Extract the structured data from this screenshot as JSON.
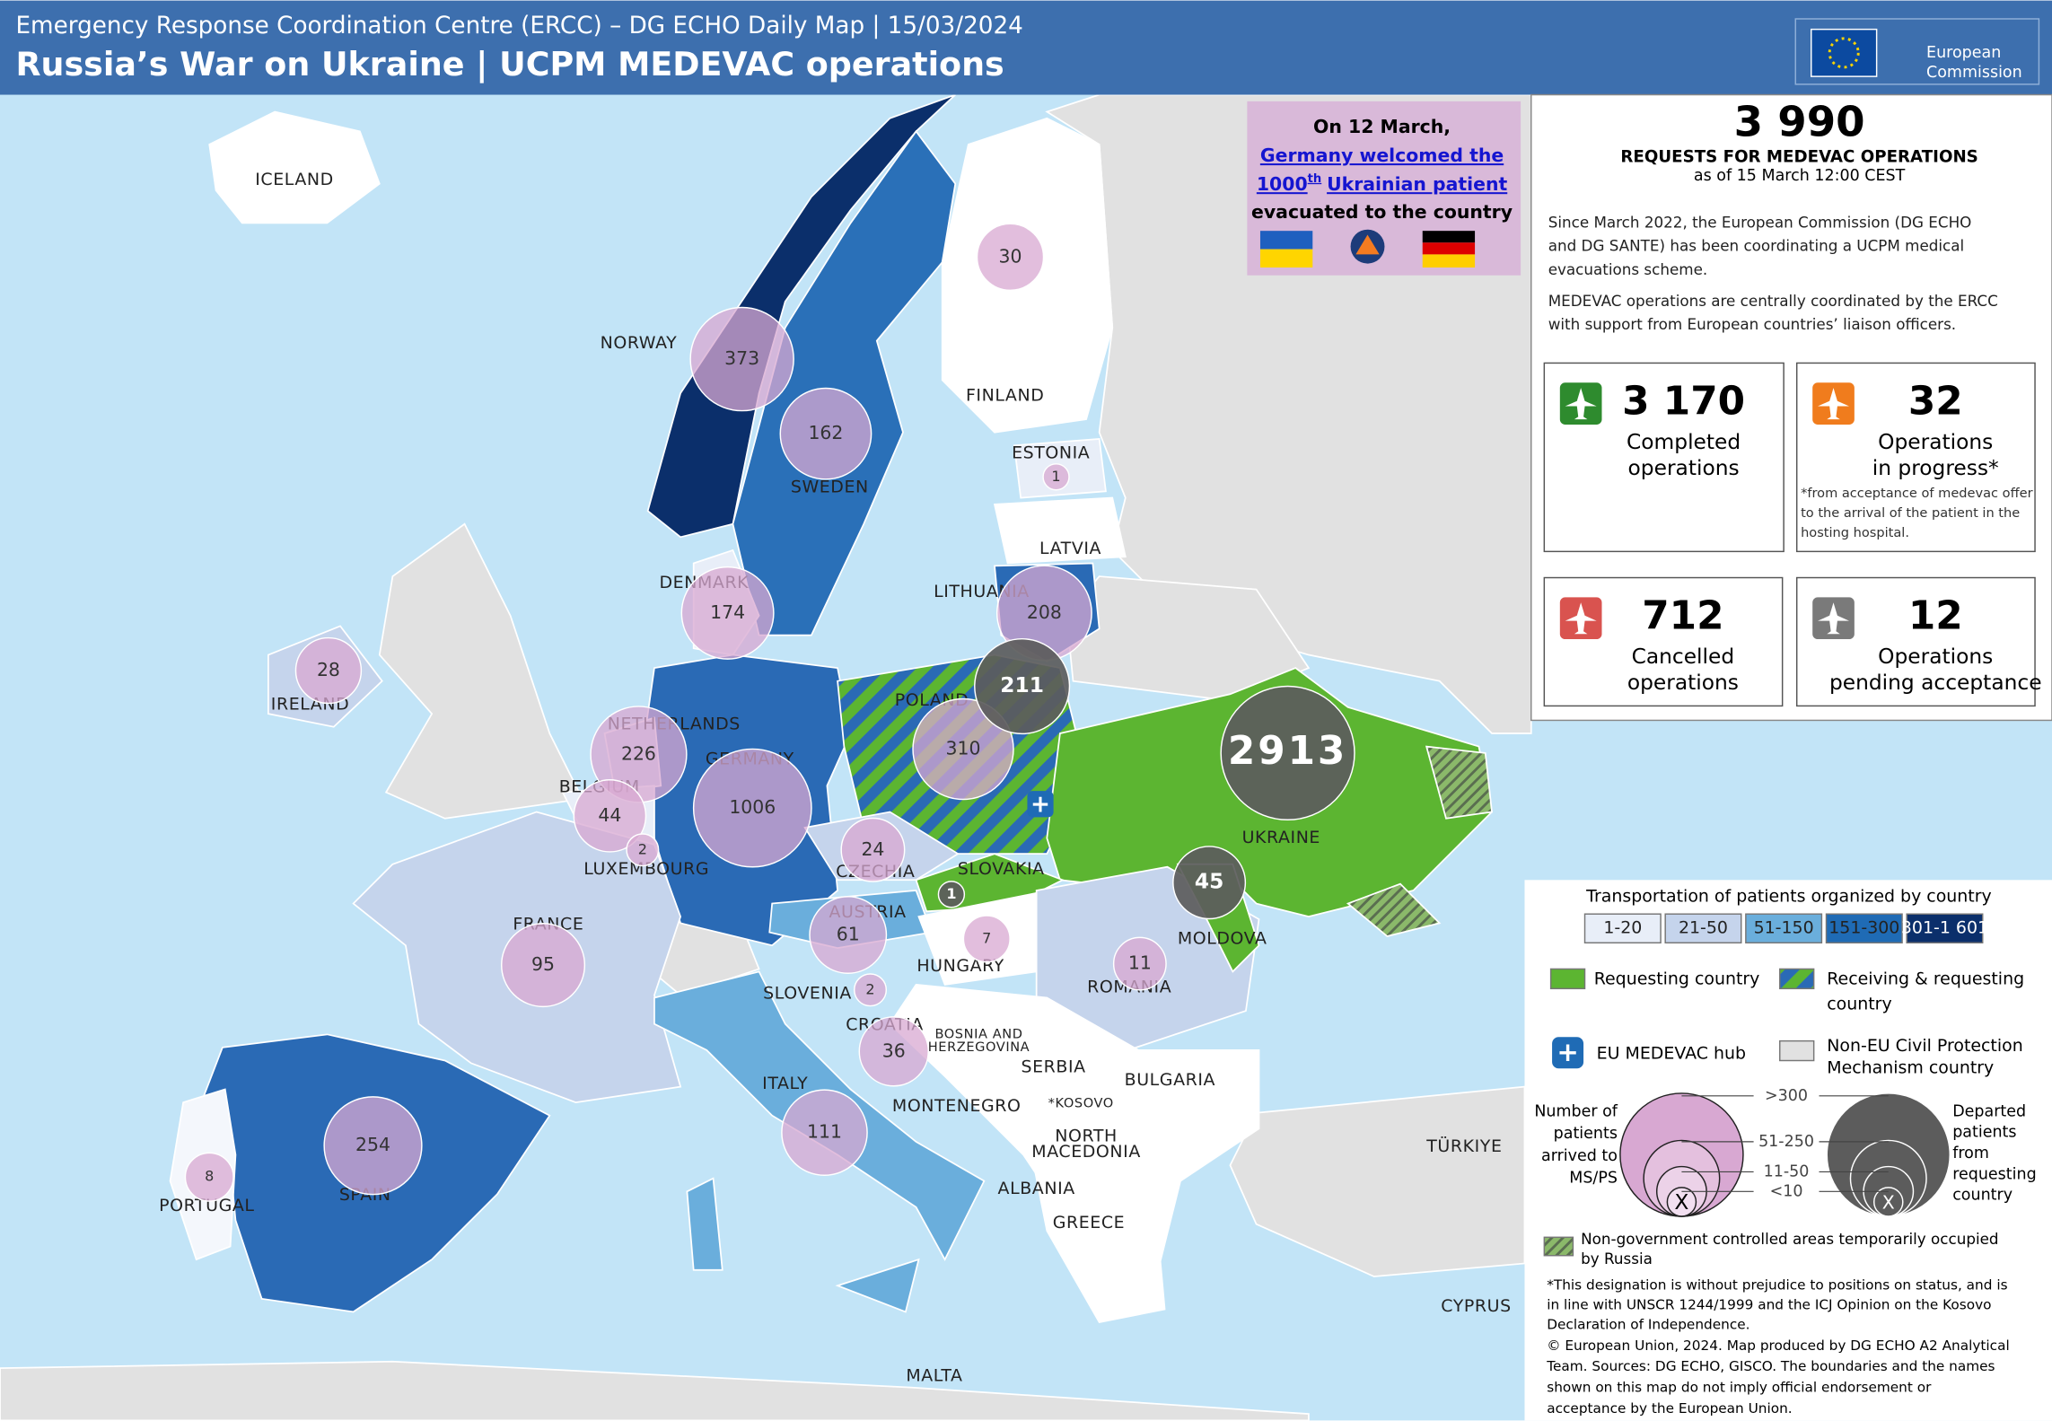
{
  "header": {
    "subtitle": "Emergency Response Coordination Centre (ERCC) – DG ECHO Daily Map |  15/03/2024",
    "title": "Russia’s War on Ukraine | UCPM MEDEVAC operations",
    "logo": [
      "European",
      "Commission"
    ]
  },
  "callout": {
    "line1": "On 12 March,",
    "link_a": "Germany welcomed the",
    "link_b": "1000",
    "link_sup": "th",
    "link_c": "Ukrainian patient",
    "line3": "evacuated to the country"
  },
  "stats": {
    "total": "3 990",
    "total_label": "REQUESTS FOR MEDEVAC OPERATIONS",
    "as_of": "as of 15 March 12:00 CEST",
    "intro1": [
      "Since March 2022, the European Commission (DG ECHO",
      "and DG SANTE) has been coordinating a UCPM medical",
      "evacuations scheme."
    ],
    "intro2": [
      "MEDEVAC operations are centrally coordinated by the ERCC",
      "with support from European countries’ liaison officers."
    ],
    "cards": [
      {
        "value": "3 170",
        "label": [
          "Completed",
          "operations"
        ]
      },
      {
        "value": "32",
        "label": [
          "Operations",
          "in progress*"
        ],
        "note": [
          "*from acceptance of medevac offer",
          "to the arrival of the patient in the",
          "hosting hospital."
        ]
      },
      {
        "value": "712",
        "label": [
          "Cancelled",
          "operations"
        ]
      },
      {
        "value": "12",
        "label": [
          "Operations",
          "pending acceptance"
        ]
      }
    ]
  },
  "map": {
    "labels": [
      "ICELAND",
      "NORWAY",
      "SWEDEN",
      "FINLAND",
      "ESTONIA",
      "LATVIA",
      "LITHUANIA",
      "DENMARK",
      "IRELAND",
      "NETHERLANDS",
      "GERMANY",
      "BELGIUM",
      "LUXEMBOURG",
      "POLAND",
      "CZECHIA",
      "SLOVAKIA",
      "UKRAINE",
      "AUSTRIA",
      "MOLDOVA",
      "HUNGARY",
      "ROMANIA",
      "SLOVENIA",
      "CROATIA",
      "BOSNIA AND",
      "HERZEGOVINA",
      "SERBIA",
      "BULGARIA",
      "FRANCE",
      "ITALY",
      "MONTENEGRO",
      "*KOSOVO",
      "NORTH",
      "MACEDONIA",
      "ALBANIA",
      "GREECE",
      "TÜRKIYE",
      "CYPRUS",
      "MALTA",
      "SPAIN",
      "PORTUGAL"
    ],
    "arrivals": [
      373,
      162,
      30,
      1,
      208,
      174,
      28,
      226,
      1006,
      44,
      2,
      310,
      24,
      61,
      7,
      11,
      2,
      36,
      95,
      111,
      254,
      8
    ],
    "departures": [
      211,
      2913,
      45,
      1
    ]
  },
  "legend": {
    "title": "Transportation of patients organized by country",
    "classes": [
      "1-20",
      "21-50",
      "51-150",
      "151-300",
      "301-1 601"
    ],
    "requesting": "Requesting country",
    "receiving": [
      "Receiving & requesting",
      "country"
    ],
    "hub": "EU MEDEVAC hub",
    "non_eu": [
      "Non-EU Civil Protection",
      "Mechanism country"
    ],
    "arrived": [
      "Number of",
      "patients",
      "arrived to",
      "MS/PS"
    ],
    "departed": [
      "Departed",
      "patients",
      "from",
      "requesting",
      "country"
    ],
    "sizes": [
      ">300",
      "51-250",
      "11-50",
      "<10"
    ],
    "x": "X",
    "occupied": [
      "Non-government controlled areas temporarily occupied",
      "by Russia"
    ],
    "footnote": [
      "*This designation is without prejudice to positions on status, and is",
      "in line with UNSCR 1244/1999 and the ICJ Opinion on the Kosovo",
      "Declaration of Independence."
    ],
    "credits": [
      "© European Union, 2024. Map produced by DG ECHO A2 Analytical",
      "Team. Sources: DG ECHO, GISCO. The boundaries and the names",
      "shown on this map do not imply official endorsement or",
      "acceptance by the European Union."
    ]
  }
}
